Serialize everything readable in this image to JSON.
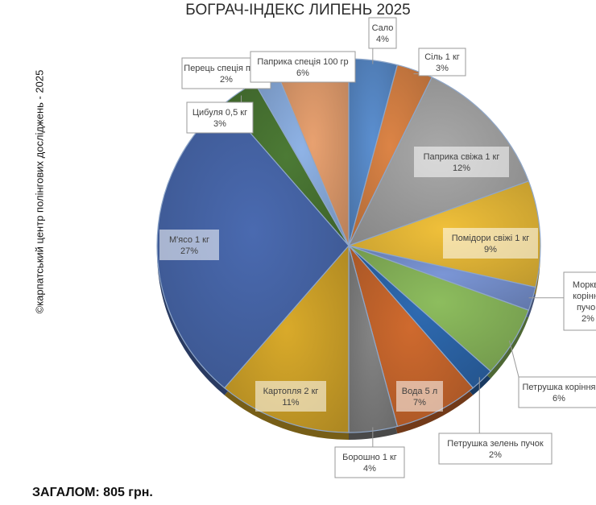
{
  "chart_data": {
    "type": "pie",
    "title": "БОГРАЧ-ІНДЕКС ЛИПЕНЬ 2025",
    "slices": [
      {
        "label": "Сало",
        "value": 4,
        "value_label": "4%",
        "color": "#5b8fd0"
      },
      {
        "label": "Сіль 1 кг",
        "value": 3,
        "value_label": "3%",
        "color": "#dc8446"
      },
      {
        "label": "Паприка свіжа 1 кг",
        "value": 12,
        "value_label": "12%",
        "color": "#a9a9a9"
      },
      {
        "label": "Помідори свіжі 1 кг",
        "value": 9,
        "value_label": "9%",
        "color": "#f0c03a"
      },
      {
        "label": "Морква коріння пучок",
        "value": 2,
        "value_label": "2%",
        "color": "#7b96d6"
      },
      {
        "label": "Петрушка коріння",
        "value": 6,
        "value_label": "6%",
        "color": "#8dbd5e"
      },
      {
        "label": "Петрушка зелень пучок",
        "value": 2,
        "value_label": "2%",
        "color": "#2e6ab1"
      },
      {
        "label": "Вода 5 л",
        "value": 7,
        "value_label": "7%",
        "color": "#cf6a2e"
      },
      {
        "label": "Борошно 1 кг",
        "value": 4,
        "value_label": "4%",
        "color": "#858585"
      },
      {
        "label": "Картопля 2 кг",
        "value": 11,
        "value_label": "11%",
        "color": "#d9aa2a"
      },
      {
        "label": "М'ясо 1 кг",
        "value": 27,
        "value_label": "27%",
        "color": "#4a6ab0"
      },
      {
        "label": "Цибуля 0,5 кг",
        "value": 3,
        "value_label": "3%",
        "color": "#4c7a35"
      },
      {
        "label": "Перець спеція пачка",
        "value": 2,
        "value_label": "2%",
        "color": "#8fb3e6"
      },
      {
        "label": "Паприка спеція 100 гр",
        "value": 6,
        "value_label": "6%",
        "color": "#e8a170"
      }
    ]
  },
  "side_credit": "©карпатський центр полінгових досліджень - 2025",
  "total_label": "ЗАГАЛОМ: 805 грн."
}
